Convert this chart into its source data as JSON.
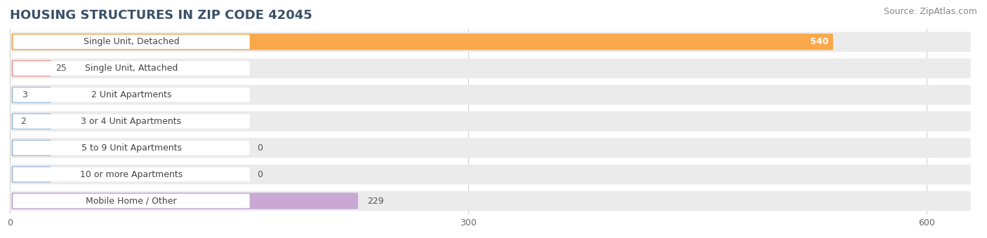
{
  "title": "HOUSING STRUCTURES IN ZIP CODE 42045",
  "source": "Source: ZipAtlas.com",
  "categories": [
    "Single Unit, Detached",
    "Single Unit, Attached",
    "2 Unit Apartments",
    "3 or 4 Unit Apartments",
    "5 to 9 Unit Apartments",
    "10 or more Apartments",
    "Mobile Home / Other"
  ],
  "values": [
    540,
    25,
    3,
    2,
    0,
    0,
    229
  ],
  "bar_colors": [
    "#f9a94b",
    "#f4a0a0",
    "#a8c4e0",
    "#a8c4e0",
    "#a8c4e0",
    "#a8c4e0",
    "#c9a8d4"
  ],
  "background_row_color": "#ebebeb",
  "xlim_max": 630,
  "xticks": [
    0,
    300,
    600
  ],
  "title_fontsize": 13,
  "source_fontsize": 9,
  "bar_label_fontsize": 9,
  "value_fontsize": 9
}
